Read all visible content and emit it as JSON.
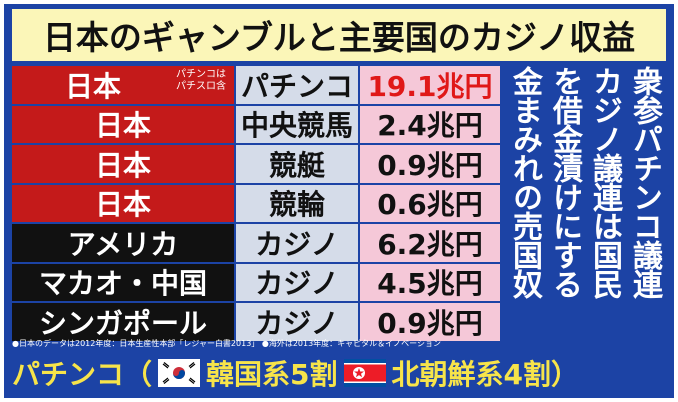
{
  "title": "日本のギャンブルと主要国のカジノ収益",
  "rows": [
    {
      "country": "日本",
      "note": "パチンコは\nパチスロ含",
      "type": "パチンコ",
      "amount": "19.1兆円",
      "highlight": true,
      "color": "#c41a1a"
    },
    {
      "country": "日本",
      "type": "中央競馬",
      "amount": "2.4兆円",
      "color": "#c41a1a"
    },
    {
      "country": "日本",
      "type": "競艇",
      "amount": "0.9兆円",
      "color": "#c41a1a"
    },
    {
      "country": "日本",
      "type": "競輪",
      "amount": "0.6兆円",
      "color": "#c41a1a"
    },
    {
      "country": "アメリカ",
      "type": "カジノ",
      "amount": "6.2兆円",
      "color": "#111111"
    },
    {
      "country": "マカオ・中国",
      "type": "カジノ",
      "amount": "4.5兆円",
      "color": "#111111"
    },
    {
      "country": "シンガポール",
      "type": "カジノ",
      "amount": "0.9兆円",
      "color": "#111111"
    }
  ],
  "vertical_text": {
    "col1": "衆参パチンコ議連",
    "col2": "カジノ議連は国民",
    "col3": "を借金漬けにする",
    "col4": "金まみれの売国奴"
  },
  "footnote": "●日本のデータは2012年度：日本生産性本部「レジャー白書2013」 ●海外は2013年度：キャピタル＆イノベーション",
  "bottom": {
    "text1": "パチンコ（",
    "text2": "韓国系5割",
    "text3": "北朝鮮系4割）"
  },
  "icons": {
    "flag_south_korea": "south-korea-flag-icon",
    "flag_north_korea": "north-korea-flag-icon"
  }
}
